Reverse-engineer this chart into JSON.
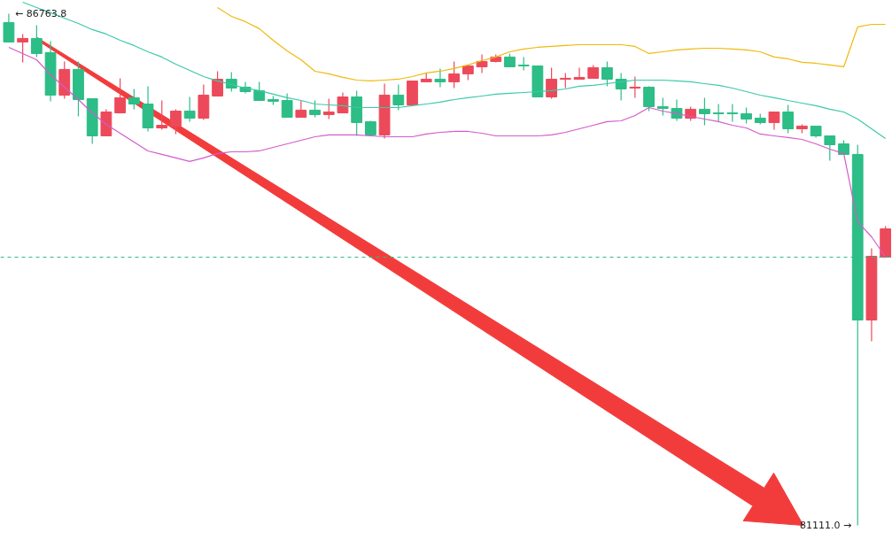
{
  "chart_data": {
    "type": "candlestick",
    "categories": [
      null,
      null,
      null,
      null,
      null,
      null,
      null,
      null,
      null,
      null,
      null,
      null,
      null,
      null,
      null,
      null,
      null,
      null,
      null,
      null,
      null,
      null,
      null,
      null,
      null,
      null,
      null,
      null,
      null,
      null,
      null,
      null,
      null,
      null,
      null,
      null,
      null,
      null,
      null,
      null,
      null,
      null,
      null,
      null,
      null,
      null,
      null,
      null,
      null,
      null,
      null,
      null,
      null,
      null,
      null,
      null,
      null,
      null,
      null,
      null,
      null,
      null,
      null,
      null
    ],
    "ohlc": [
      [
        86666,
        86763.8,
        86451,
        86451
      ],
      [
        86451,
        86539,
        86226,
        86490
      ],
      [
        86490,
        86637,
        86285,
        86324
      ],
      [
        86333,
        86461,
        85796,
        85864
      ],
      [
        85864,
        86236,
        85825,
        86148
      ],
      [
        86148,
        86236,
        85629,
        85815
      ],
      [
        85825,
        85825,
        85326,
        85414
      ],
      [
        85414,
        85708,
        85414,
        85678
      ],
      [
        85668,
        86050,
        85668,
        85835
      ],
      [
        85835,
        85932,
        85708,
        85766
      ],
      [
        85766,
        85962,
        85463,
        85502
      ],
      [
        85502,
        85805,
        85483,
        85531
      ],
      [
        85522,
        85708,
        85434,
        85688
      ],
      [
        85688,
        85844,
        85571,
        85610
      ],
      [
        85610,
        85981,
        85590,
        85864
      ],
      [
        85854,
        86128,
        85854,
        86040
      ],
      [
        86040,
        86118,
        85903,
        85942
      ],
      [
        85952,
        86011,
        85884,
        85903
      ],
      [
        85913,
        86011,
        85805,
        85805
      ],
      [
        85815,
        85854,
        85756,
        85796
      ],
      [
        85805,
        85884,
        85620,
        85620
      ],
      [
        85620,
        85805,
        85620,
        85698
      ],
      [
        85698,
        85805,
        85620,
        85649
      ],
      [
        85649,
        85825,
        85600,
        85678
      ],
      [
        85668,
        85893,
        85668,
        85844
      ],
      [
        85844,
        85913,
        85414,
        85561
      ],
      [
        85571,
        85580,
        85414,
        85424
      ],
      [
        85424,
        85991,
        85385,
        85864
      ],
      [
        85864,
        85981,
        85698,
        85756
      ],
      [
        85756,
        86020,
        85756,
        86020
      ],
      [
        86011,
        86108,
        86011,
        86040
      ],
      [
        86040,
        86157,
        85952,
        86011
      ],
      [
        86011,
        86236,
        85942,
        86099
      ],
      [
        86099,
        86187,
        86030,
        86187
      ],
      [
        86177,
        86314,
        86108,
        86236
      ],
      [
        86236,
        86314,
        86226,
        86285
      ],
      [
        86285,
        86324,
        86177,
        86177
      ],
      [
        86196,
        86285,
        86138,
        86187
      ],
      [
        86187,
        86187,
        85844,
        85844
      ],
      [
        85844,
        86167,
        85825,
        86040
      ],
      [
        86040,
        86108,
        85942,
        86050
      ],
      [
        86040,
        86167,
        86040,
        86060
      ],
      [
        86050,
        86196,
        86050,
        86167
      ],
      [
        86167,
        86236,
        85962,
        86040
      ],
      [
        86040,
        86108,
        85805,
        85932
      ],
      [
        85942,
        86069,
        85835,
        85952
      ],
      [
        85952,
        85962,
        85688,
        85737
      ],
      [
        85737,
        85835,
        85639,
        85717
      ],
      [
        85717,
        85815,
        85580,
        85610
      ],
      [
        85610,
        85737,
        85580,
        85708
      ],
      [
        85708,
        85835,
        85531,
        85659
      ],
      [
        85668,
        85766,
        85571,
        85659
      ],
      [
        85668,
        85766,
        85571,
        85659
      ],
      [
        85659,
        85727,
        85551,
        85600
      ],
      [
        85610,
        85659,
        85541,
        85561
      ],
      [
        85561,
        85678,
        85483,
        85678
      ],
      [
        85678,
        85756,
        85443,
        85492
      ],
      [
        85492,
        85541,
        85443,
        85522
      ],
      [
        85522,
        85522,
        85394,
        85414
      ],
      [
        85414,
        85414,
        85140,
        85316
      ],
      [
        85326,
        85365,
        85209,
        85209
      ],
      [
        85209,
        85316,
        81111.0,
        83380
      ],
      [
        83380,
        84172,
        83145,
        84084
      ],
      [
        84074,
        84417,
        84074,
        84387
      ]
    ],
    "colors": [
      "#2dbd86",
      "#ec4a5a",
      "#2dbd86",
      "#2dbd86",
      "#ec4a5a",
      "#2dbd86",
      "#2dbd86",
      "#ec4a5a",
      "#ec4a5a",
      "#2dbd86",
      "#2dbd86",
      "#ec4a5a",
      "#ec4a5a",
      "#2dbd86",
      "#ec4a5a",
      "#ec4a5a",
      "#2dbd86",
      "#2dbd86",
      "#2dbd86",
      "#2dbd86",
      "#2dbd86",
      "#ec4a5a",
      "#2dbd86",
      "#ec4a5a",
      "#ec4a5a",
      "#2dbd86",
      "#2dbd86",
      "#ec4a5a",
      "#2dbd86",
      "#ec4a5a",
      "#ec4a5a",
      "#2dbd86",
      "#ec4a5a",
      "#ec4a5a",
      "#ec4a5a",
      "#ec4a5a",
      "#2dbd86",
      "#2dbd86",
      "#2dbd86",
      "#ec4a5a",
      "#ec4a5a",
      "#ec4a5a",
      "#ec4a5a",
      "#2dbd86",
      "#2dbd86",
      "#ec4a5a",
      "#2dbd86",
      "#2dbd86",
      "#2dbd86",
      "#ec4a5a",
      "#2dbd86",
      "#2dbd86",
      "#2dbd86",
      "#2dbd86",
      "#2dbd86",
      "#ec4a5a",
      "#2dbd86",
      "#ec4a5a",
      "#2dbd86",
      "#2dbd86",
      "#2dbd86",
      "#2dbd86",
      "#ec4a5a",
      "#ec4a5a"
    ],
    "series": [
      {
        "type": "line",
        "color": "#f0b90b",
        "values": [
          null,
          null,
          null,
          null,
          null,
          null,
          null,
          null,
          null,
          null,
          null,
          null,
          null,
          null,
          null,
          86832,
          86734,
          86676,
          86598,
          86470,
          86353,
          86255,
          86128,
          86099,
          86060,
          86030,
          86021,
          86030,
          86040,
          86069,
          86109,
          86128,
          86158,
          86197,
          86245,
          86285,
          86343,
          86373,
          86392,
          86402,
          86412,
          86421,
          86421,
          86421,
          86421,
          86402,
          86324,
          86343,
          86363,
          86373,
          86382,
          86382,
          86373,
          86363,
          86343,
          86285,
          86265,
          86226,
          86216,
          86197,
          86177,
          86617,
          86646,
          86646
        ]
      },
      {
        "type": "line",
        "color": "#3cc9a8",
        "values": [
          null,
          86891,
          86832,
          86774,
          86715,
          86656,
          86588,
          86539,
          86470,
          86412,
          86343,
          86285,
          86206,
          86138,
          86069,
          86021,
          85981,
          85942,
          85913,
          85874,
          85835,
          85805,
          85766,
          85756,
          85747,
          85727,
          85727,
          85727,
          85727,
          85747,
          85766,
          85786,
          85815,
          85835,
          85854,
          85874,
          85884,
          85893,
          85903,
          85913,
          85932,
          85962,
          85972,
          85991,
          86011,
          86030,
          86030,
          86030,
          86021,
          86011,
          85991,
          85972,
          85942,
          85903,
          85864,
          85835,
          85805,
          85776,
          85747,
          85708,
          85678,
          85600,
          85492,
          85385
        ]
      },
      {
        "type": "line",
        "color": "#d35bcb",
        "values": [
          86392,
          86324,
          86255,
          86089,
          85952,
          85815,
          85668,
          85541,
          85443,
          85346,
          85248,
          85209,
          85170,
          85131,
          85170,
          85219,
          85238,
          85238,
          85248,
          85287,
          85326,
          85365,
          85404,
          85424,
          85424,
          85424,
          85414,
          85404,
          85404,
          85404,
          85434,
          85453,
          85463,
          85463,
          85443,
          85414,
          85414,
          85414,
          85414,
          85424,
          85453,
          85492,
          85531,
          85571,
          85580,
          85639,
          85727,
          85688,
          85659,
          85629,
          85600,
          85571,
          85531,
          85502,
          85434,
          85414,
          85395,
          85375,
          85326,
          85267,
          85219,
          84465,
          84299,
          84074
        ]
      }
    ],
    "ylim": [
      80945,
      86910
    ],
    "tick_labels": false,
    "ref_lines": [
      {
        "axis": "y",
        "value": 84074,
        "color": "#2dbd86",
        "line_style": "dashed"
      }
    ],
    "annotations": [
      "← 86763.8",
      "81111.0 →"
    ]
  }
}
